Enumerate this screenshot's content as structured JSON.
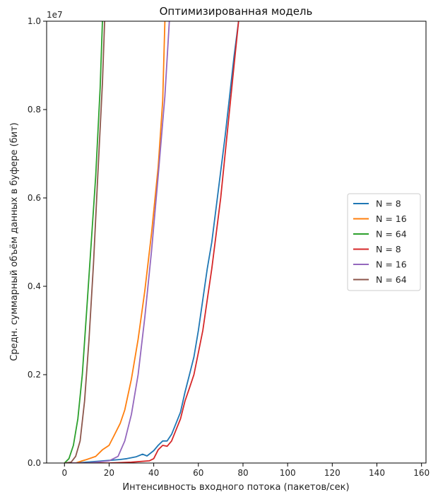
{
  "chart_data": {
    "type": "line",
    "title": "Оптимизированная модель",
    "xlabel": "Интенсивность входного потока (пакетов/сек)",
    "ylabel": "Средн. суммарный объём данных в буфере (бит)",
    "y_multiplier": "1e7",
    "xlim": [
      -8,
      162
    ],
    "ylim": [
      0,
      1.0
    ],
    "x_ticks": [
      "0",
      "20",
      "40",
      "60",
      "80",
      "100",
      "120",
      "140",
      "160"
    ],
    "y_ticks": [
      "0.0",
      "0.2",
      "0.4",
      "0.6",
      "0.8",
      "1.0"
    ],
    "grid": false,
    "legend_position": "center-right",
    "series": [
      {
        "name": "N = 8",
        "color": "#1f77b4",
        "x": [
          0,
          5,
          10,
          15,
          20,
          25,
          28,
          32,
          35,
          37,
          40,
          42,
          44,
          46,
          48,
          50,
          52,
          54,
          56,
          58,
          60,
          62,
          64,
          66,
          68,
          70,
          72,
          74,
          76,
          78
        ],
        "y": [
          0.0,
          0.0,
          0.002,
          0.004,
          0.006,
          0.008,
          0.01,
          0.014,
          0.02,
          0.016,
          0.028,
          0.04,
          0.05,
          0.05,
          0.065,
          0.09,
          0.115,
          0.16,
          0.2,
          0.24,
          0.3,
          0.37,
          0.44,
          0.5,
          0.58,
          0.66,
          0.74,
          0.83,
          0.92,
          1.0
        ]
      },
      {
        "name": "N = 16",
        "color": "#ff7f0e",
        "x": [
          0,
          5,
          8,
          10,
          14,
          17,
          20,
          22,
          25,
          27,
          30,
          33,
          36,
          39,
          42,
          44,
          45
        ],
        "y": [
          0.0,
          0.0,
          0.005,
          0.008,
          0.015,
          0.03,
          0.04,
          0.06,
          0.09,
          0.12,
          0.19,
          0.28,
          0.39,
          0.52,
          0.67,
          0.82,
          1.0
        ]
      },
      {
        "name": "N = 64",
        "color": "#2ca02c",
        "x": [
          0,
          2,
          4,
          6,
          8,
          10,
          12,
          14,
          16,
          17
        ],
        "y": [
          0.0,
          0.01,
          0.04,
          0.1,
          0.2,
          0.35,
          0.5,
          0.65,
          0.85,
          1.0
        ]
      },
      {
        "name": "N = 8",
        "color": "#d62728",
        "x": [
          0,
          10,
          20,
          30,
          38,
          40,
          42,
          44,
          46,
          48,
          50,
          52,
          54,
          56,
          58,
          60,
          62,
          64,
          66,
          68,
          70,
          72,
          74,
          76,
          78
        ],
        "y": [
          0.0,
          0.0,
          0.0,
          0.002,
          0.005,
          0.01,
          0.03,
          0.04,
          0.038,
          0.05,
          0.075,
          0.1,
          0.14,
          0.17,
          0.2,
          0.25,
          0.3,
          0.37,
          0.44,
          0.52,
          0.6,
          0.7,
          0.8,
          0.9,
          1.0
        ]
      },
      {
        "name": "N = 16",
        "color": "#9467bd",
        "x": [
          0,
          10,
          20,
          24,
          27,
          30,
          33,
          36,
          39,
          42,
          45,
          47
        ],
        "y": [
          0.0,
          0.0,
          0.005,
          0.015,
          0.05,
          0.11,
          0.2,
          0.33,
          0.48,
          0.65,
          0.83,
          1.0
        ]
      },
      {
        "name": "N = 64",
        "color": "#8c564b",
        "x": [
          0,
          3,
          5,
          7,
          9,
          11,
          13,
          15,
          17,
          18
        ],
        "y": [
          0.0,
          0.002,
          0.015,
          0.05,
          0.14,
          0.28,
          0.45,
          0.66,
          0.86,
          1.0
        ]
      }
    ]
  }
}
